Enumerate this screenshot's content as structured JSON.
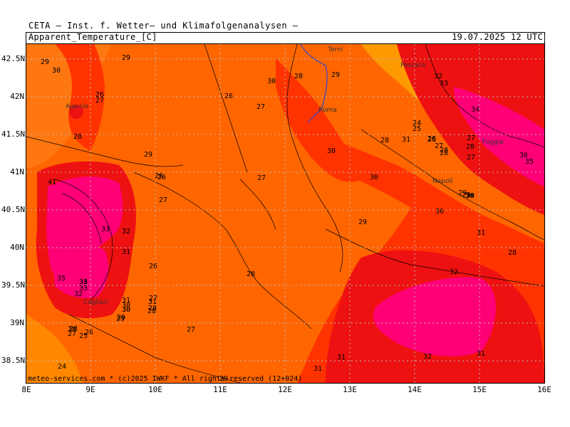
{
  "header": {
    "institute": "CETA — Inst. f. Wetter— und Klimafolgenanalysen —",
    "variable": "Apparent_Temperature_[C]",
    "datetime": "19.07.2025 12 UTC"
  },
  "footer": "meteo-services.com * (c)2025 IWKF * All rights reserved (12+024)",
  "axes": {
    "lat_labels": [
      "42.5N",
      "42N",
      "41.5N",
      "41N",
      "40.5N",
      "40N",
      "39.5N",
      "39N",
      "38.5N"
    ],
    "lon_labels": [
      "8E",
      "9E",
      "10E",
      "11E",
      "12E",
      "13E",
      "14E",
      "15E",
      "16E"
    ]
  },
  "cities": [
    "Terni",
    "Pescara",
    "Ajaccio",
    "Roma",
    "Foggia",
    "Napoli",
    "Cagliari"
  ],
  "contour_labels": [
    "29",
    "30",
    "29",
    "26",
    "27",
    "28",
    "29",
    "30",
    "26",
    "27",
    "28",
    "29",
    "26",
    "27",
    "30",
    "28",
    "29",
    "32",
    "33",
    "34",
    "28",
    "29",
    "30",
    "26",
    "27",
    "28",
    "24",
    "25",
    "26",
    "30",
    "31",
    "27",
    "28",
    "27",
    "36",
    "35",
    "41",
    "33",
    "32",
    "33",
    "31",
    "30",
    "26",
    "29",
    "28",
    "27",
    "28",
    "31",
    "30",
    "26",
    "27",
    "35",
    "34",
    "33",
    "32",
    "31",
    "30",
    "29",
    "28",
    "27",
    "26",
    "25",
    "28",
    "29",
    "30",
    "31",
    "36",
    "28",
    "32",
    "31",
    "32",
    "31",
    "24",
    "27",
    "31",
    "29",
    "28"
  ],
  "colors": {
    "t24": "#ff9900",
    "t26": "#ff6600",
    "t30": "#ff3300",
    "t33": "#ee1111",
    "t35": "#dd0066",
    "hot": "#ff0077",
    "grid": "#bbbbbb",
    "rivers": "#3344cc"
  }
}
